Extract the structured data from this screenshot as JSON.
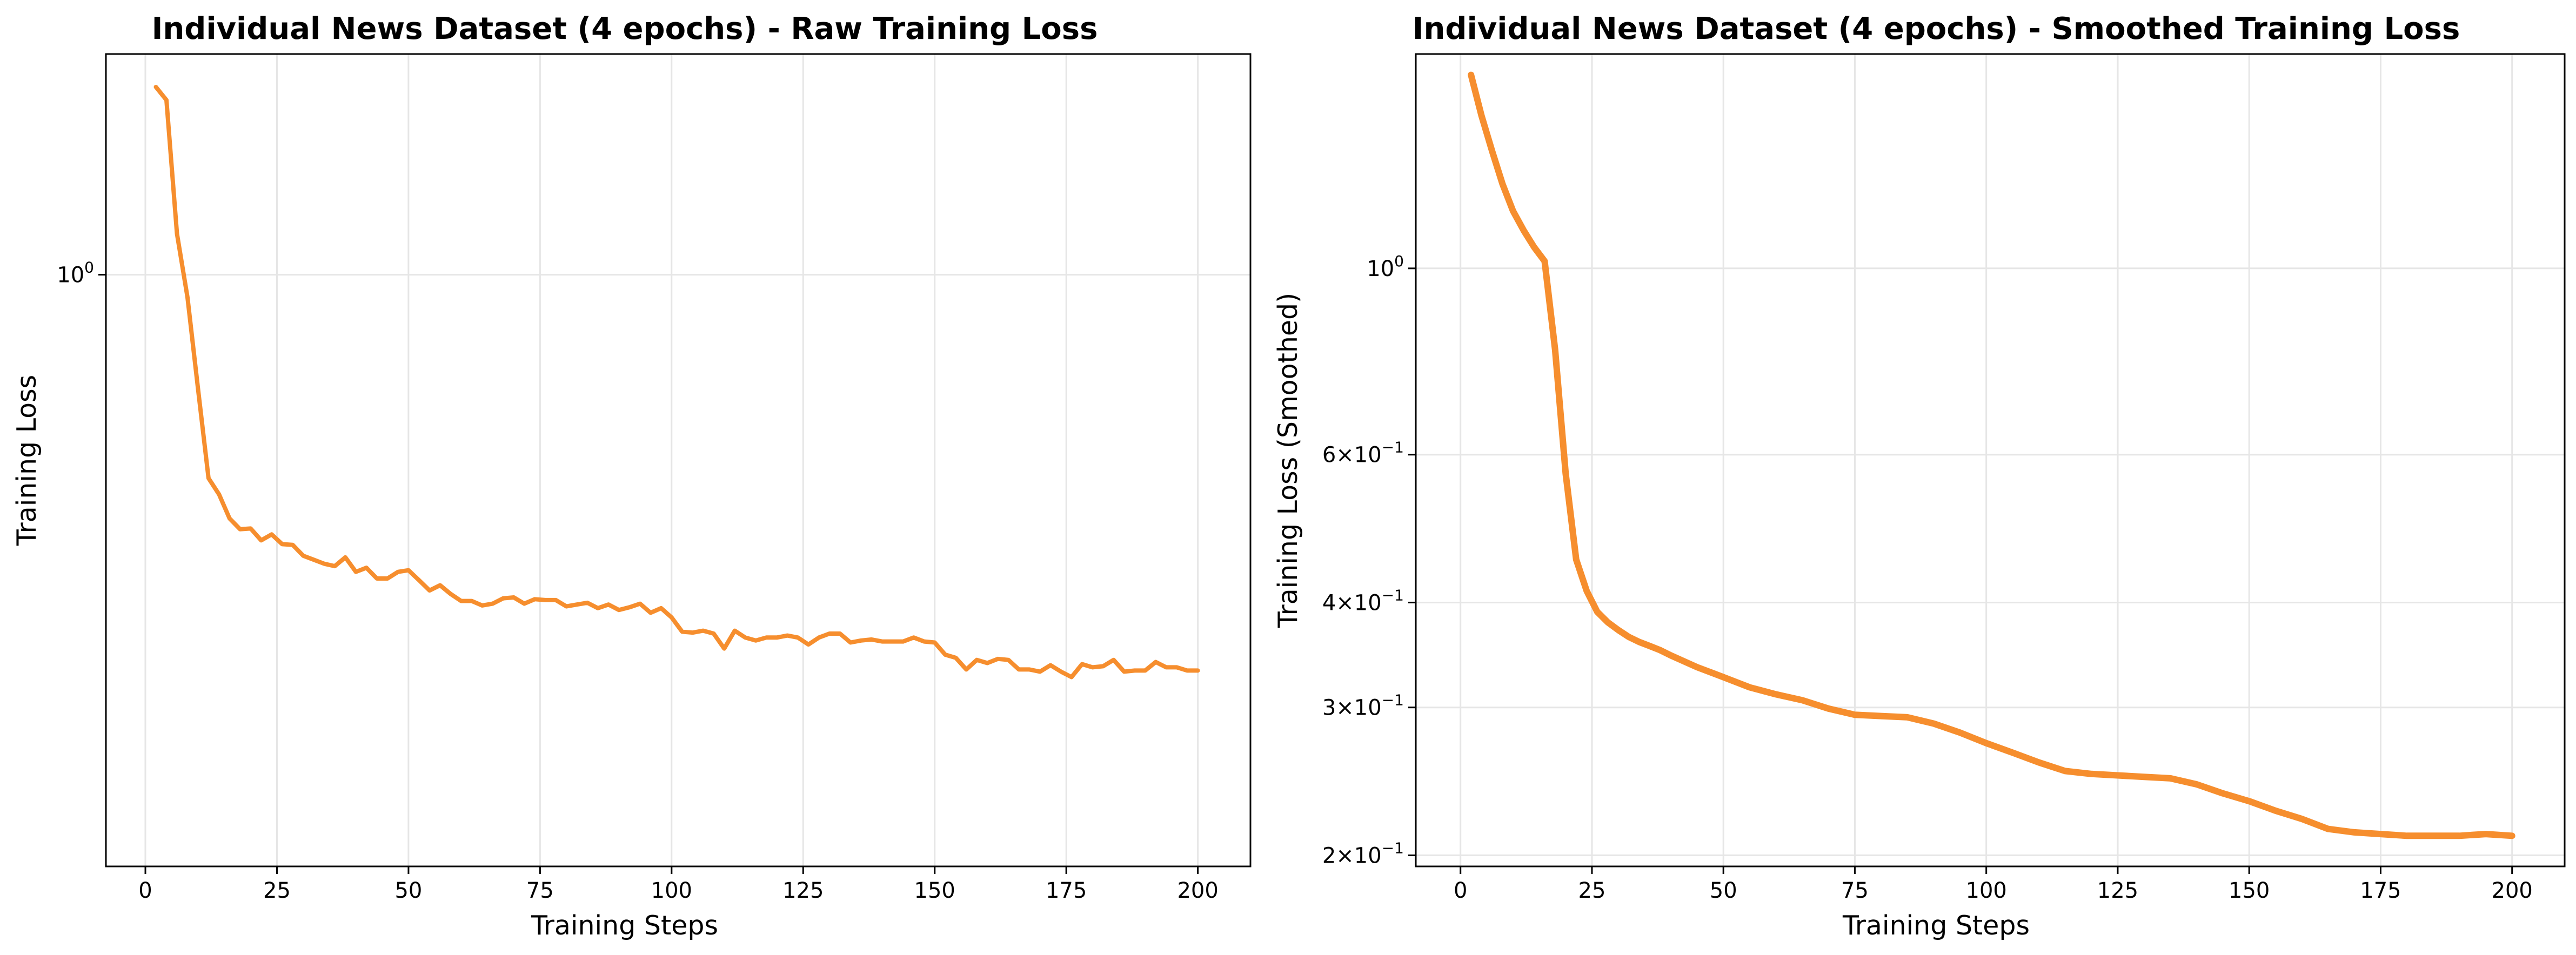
{
  "colors": {
    "line": "#f68e2e",
    "grid": "#e6e6e6",
    "axes": "#000000",
    "background": "#ffffff"
  },
  "chart_data": [
    {
      "type": "line",
      "title": "Individual News Dataset (4 epochs) - Raw Training Loss",
      "xlabel": "Training Steps",
      "ylabel": "Training Loss",
      "xlim": [
        -7.5,
        210
      ],
      "ylim": [
        0.195,
        1.84
      ],
      "yscale": "log",
      "grid": true,
      "xticks": [
        0,
        25,
        50,
        75,
        100,
        125,
        150,
        175,
        200
      ],
      "xtick_labels": [
        "0",
        "25",
        "50",
        "75",
        "100",
        "125",
        "150",
        "175",
        "200"
      ],
      "yticks": [
        {
          "value": 1.0,
          "mantissa": "",
          "exp": "0"
        }
      ],
      "series": [
        {
          "x": [
            2,
            4,
            6,
            8,
            10,
            12,
            14,
            16,
            18,
            20,
            22,
            24,
            26,
            28,
            30,
            32,
            34,
            36,
            38,
            40,
            42,
            44,
            46,
            48,
            50,
            52,
            54,
            56,
            58,
            60,
            62,
            64,
            66,
            68,
            70,
            72,
            74,
            76,
            78,
            80,
            82,
            84,
            86,
            88,
            90,
            92,
            94,
            96,
            98,
            100,
            102,
            104,
            106,
            108,
            110,
            112,
            114,
            116,
            118,
            120,
            122,
            124,
            126,
            128,
            130,
            132,
            134,
            136,
            138,
            140,
            142,
            144,
            146,
            148,
            150,
            152,
            154,
            156,
            158,
            160,
            162,
            164,
            166,
            168,
            170,
            172,
            174,
            176,
            178,
            180,
            182,
            184,
            186,
            188,
            190,
            192,
            194,
            196,
            198,
            200
          ],
          "y": [
            1.68,
            1.62,
            1.12,
            0.94,
            0.73,
            0.57,
            0.545,
            0.51,
            0.495,
            0.496,
            0.48,
            0.488,
            0.475,
            0.474,
            0.46,
            0.455,
            0.45,
            0.447,
            0.458,
            0.44,
            0.445,
            0.432,
            0.432,
            0.44,
            0.442,
            0.43,
            0.418,
            0.424,
            0.414,
            0.406,
            0.406,
            0.401,
            0.403,
            0.409,
            0.41,
            0.403,
            0.408,
            0.407,
            0.407,
            0.4,
            0.402,
            0.404,
            0.398,
            0.402,
            0.396,
            0.399,
            0.403,
            0.393,
            0.398,
            0.388,
            0.373,
            0.372,
            0.374,
            0.371,
            0.356,
            0.374,
            0.367,
            0.364,
            0.367,
            0.367,
            0.369,
            0.367,
            0.36,
            0.367,
            0.371,
            0.371,
            0.362,
            0.364,
            0.365,
            0.363,
            0.363,
            0.363,
            0.367,
            0.363,
            0.362,
            0.35,
            0.347,
            0.336,
            0.345,
            0.342,
            0.346,
            0.345,
            0.336,
            0.336,
            0.334,
            0.34,
            0.334,
            0.329,
            0.341,
            0.338,
            0.339,
            0.345,
            0.334,
            0.335,
            0.335,
            0.343,
            0.338,
            0.338,
            0.335,
            0.335
          ]
        }
      ]
    },
    {
      "type": "line",
      "title": "Individual News Dataset (4 epochs) - Smoothed Training Loss",
      "xlabel": "Training Steps",
      "ylabel": "Training Loss (Smoothed)",
      "xlim": [
        -8.5,
        210
      ],
      "ylim": [
        0.194,
        1.8
      ],
      "yscale": "log",
      "grid": true,
      "xticks": [
        0,
        25,
        50,
        75,
        100,
        125,
        150,
        175,
        200
      ],
      "xtick_labels": [
        "0",
        "25",
        "50",
        "75",
        "100",
        "125",
        "150",
        "175",
        "200"
      ],
      "yticks": [
        {
          "value": 1.0,
          "mantissa": "",
          "exp": "0"
        },
        {
          "value": 0.6,
          "mantissa": "6",
          "exp": "−1"
        },
        {
          "value": 0.4,
          "mantissa": "4",
          "exp": "−1"
        },
        {
          "value": 0.3,
          "mantissa": "3",
          "exp": "−1"
        },
        {
          "value": 0.2,
          "mantissa": "2",
          "exp": "−1"
        }
      ],
      "series": [
        {
          "x": [
            2,
            4,
            6,
            8,
            10,
            12,
            14,
            16,
            18,
            20,
            22,
            24,
            26,
            28,
            30,
            32,
            34,
            36,
            38,
            40,
            45,
            50,
            55,
            60,
            65,
            70,
            75,
            80,
            85,
            90,
            95,
            100,
            105,
            110,
            115,
            120,
            125,
            130,
            135,
            140,
            145,
            150,
            155,
            160,
            165,
            170,
            175,
            180,
            185,
            190,
            195,
            200
          ],
          "y": [
            1.7,
            1.52,
            1.38,
            1.26,
            1.17,
            1.11,
            1.06,
            1.02,
            0.8,
            0.57,
            0.45,
            0.413,
            0.39,
            0.379,
            0.371,
            0.364,
            0.359,
            0.355,
            0.351,
            0.346,
            0.335,
            0.326,
            0.317,
            0.311,
            0.306,
            0.299,
            0.294,
            0.293,
            0.292,
            0.287,
            0.28,
            0.272,
            0.265,
            0.258,
            0.252,
            0.25,
            0.249,
            0.248,
            0.247,
            0.243,
            0.237,
            0.232,
            0.226,
            0.221,
            0.215,
            0.213,
            0.212,
            0.211,
            0.211,
            0.211,
            0.212,
            0.211
          ]
        }
      ]
    }
  ]
}
